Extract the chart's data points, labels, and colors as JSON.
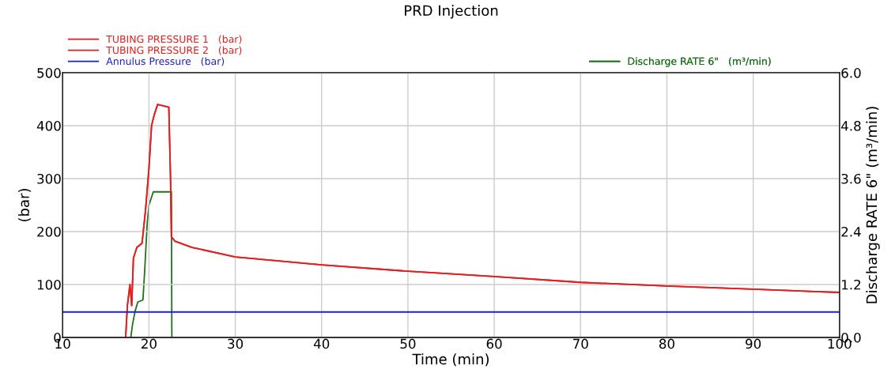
{
  "chart_data": {
    "type": "line",
    "title": "PRD Injection",
    "xlabel": "Time (min)",
    "ylabel": "(bar)",
    "y2label": "Discharge RATE 6\" (m³/min)",
    "xlim": [
      10,
      100
    ],
    "xticks": [
      10,
      20,
      30,
      40,
      50,
      60,
      70,
      80,
      90,
      100
    ],
    "ylim": [
      0,
      500
    ],
    "yticks": [
      0,
      100,
      200,
      300,
      400,
      500
    ],
    "y2lim": [
      0,
      6
    ],
    "y2ticks": [
      {
        "value": 0,
        "label": "0.0"
      },
      {
        "value": 1.2,
        "label": "1.2"
      },
      {
        "value": 2.4,
        "label": "2.4"
      },
      {
        "value": 3.6,
        "label": "3.6"
      },
      {
        "value": 4.8,
        "label": "4.8"
      },
      {
        "value": 6,
        "label": "6.0"
      }
    ],
    "grid": true,
    "legend": "top",
    "line_style": "solid",
    "marker": "none",
    "series": [
      {
        "name": "TUBING PRESSURE 1   (bar)",
        "color": "#e02020",
        "x": [
          17.3,
          17.5,
          17.8,
          18.0,
          18.2,
          18.6,
          19.2,
          19.6,
          20.0,
          20.3,
          20.6,
          21.0,
          22.3,
          22.5,
          22.6,
          23,
          25,
          30,
          40,
          50,
          60,
          70,
          80,
          90,
          100
        ],
        "values": [
          0,
          60,
          100,
          60,
          150,
          170,
          178,
          240,
          320,
          400,
          420,
          440,
          435,
          300,
          190,
          182,
          170,
          152,
          137,
          125,
          115,
          104,
          97,
          91,
          85
        ]
      },
      {
        "name": "TUBING PRESSURE 2   (bar)",
        "color": "#e02020",
        "x": [
          17.3,
          17.5,
          17.8,
          18.0,
          18.2,
          18.6,
          19.2,
          19.6,
          20.0,
          20.3,
          20.6,
          21.0,
          22.3,
          22.5,
          22.6,
          23,
          25,
          30,
          40,
          50,
          60,
          70,
          80,
          90,
          100
        ],
        "values": [
          0,
          60,
          100,
          60,
          150,
          170,
          178,
          240,
          320,
          400,
          420,
          440,
          435,
          300,
          190,
          182,
          170,
          152,
          137,
          125,
          115,
          104,
          97,
          91,
          85
        ]
      },
      {
        "name": "Annulus Pressure   (bar)",
        "color": "#2020c0",
        "x": [
          10,
          100
        ],
        "values": [
          48,
          48
        ]
      },
      {
        "name": "Discharge RATE 6\"   (m³/min)",
        "color": "#207020",
        "axis": "y2",
        "x": [
          17.9,
          18.1,
          18.4,
          18.7,
          19.3,
          19.5,
          19.8,
          20.0,
          20.5,
          22.6,
          22.65
        ],
        "values": [
          0,
          0.3,
          0.6,
          0.8,
          0.85,
          1.5,
          2.6,
          3.0,
          3.3,
          3.3,
          0
        ]
      }
    ]
  }
}
